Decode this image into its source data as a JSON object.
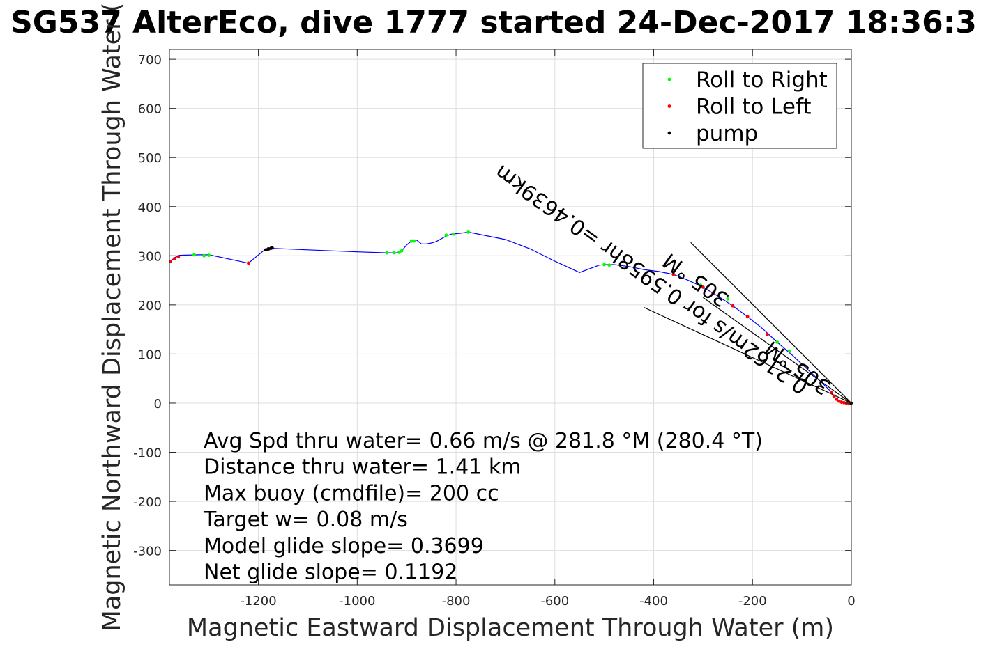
{
  "chart_data": {
    "type": "scatter",
    "title": "SG537 AlterEco, dive 1777 started 24-Dec-2017 18:36:3",
    "xlabel": "Magnetic Eastward Displacement Through Water (m)",
    "ylabel": "Magnetic Northward Displacement Through Water (",
    "xlim": [
      -1380,
      0
    ],
    "ylim": [
      -370,
      720
    ],
    "xticks": [
      -1200,
      -1000,
      -800,
      -600,
      -400,
      -200,
      0
    ],
    "yticks": [
      700,
      600,
      500,
      400,
      300,
      200,
      100,
      0,
      -100,
      -200,
      -300
    ],
    "grid": true,
    "legend_position": "top-right",
    "track_color": "#0000ff",
    "track": {
      "x": [
        0,
        -5,
        -10,
        -15,
        -20,
        -25,
        -30,
        -35,
        -40,
        -60,
        -90,
        -120,
        -150,
        -180,
        -210,
        -240,
        -270,
        -300,
        -330,
        -360,
        -390,
        -420,
        -450,
        -480,
        -495,
        -510,
        -550,
        -600,
        -650,
        -700,
        -775,
        -790,
        -810,
        -820,
        -840,
        -850,
        -860,
        -870,
        -880,
        -890,
        -900,
        -910,
        -920,
        -930,
        -940,
        -1000,
        -1100,
        -1170,
        -1175,
        -1180,
        -1190,
        -1220,
        -1300,
        -1320,
        -1360,
        -1370,
        -1378
      ],
      "y": [
        0,
        0,
        0,
        1,
        2,
        4,
        8,
        14,
        22,
        42,
        70,
        98,
        124,
        152,
        176,
        198,
        218,
        236,
        250,
        262,
        268,
        272,
        278,
        282,
        282,
        281,
        266,
        289,
        314,
        333,
        348,
        346,
        344,
        340,
        329,
        326,
        324,
        324,
        332,
        330,
        322,
        310,
        306,
        306,
        306,
        308,
        312,
        315,
        315,
        313,
        310,
        285,
        302,
        302,
        301,
        296,
        288
      ]
    },
    "series": [
      {
        "name": "Roll to Right",
        "color": "#00ff00",
        "x": [
          -1330,
          -1310,
          -1300,
          -940,
          -925,
          -915,
          -910,
          -890,
          -885,
          -820,
          -805,
          -775,
          -500,
          -490,
          -305,
          -250,
          -150,
          -125
        ],
        "y": [
          302,
          300,
          301,
          306,
          306,
          307,
          310,
          330,
          330,
          342,
          344,
          348,
          282,
          281,
          240,
          212,
          124,
          106
        ]
      },
      {
        "name": "Roll to Left",
        "color": "#ff0000",
        "x": [
          -1378,
          -1370,
          -1362,
          -1220,
          -1180,
          -360,
          -300,
          -280,
          -240,
          -210,
          -170,
          -40,
          -35,
          -30,
          -25,
          -20,
          -15,
          -10,
          -5,
          -2
        ],
        "y": [
          288,
          294,
          298,
          285,
          313,
          262,
          236,
          224,
          198,
          176,
          140,
          22,
          14,
          8,
          4,
          2,
          1,
          0,
          0,
          0
        ]
      },
      {
        "name": "pump",
        "color": "#000000",
        "x": [
          -1185,
          -1180,
          -1175,
          -1172,
          -0.5
        ],
        "y": [
          312,
          314,
          315,
          316,
          0
        ]
      }
    ],
    "annotations": [
      "Avg Spd thru water=  0.66 m/s @ 281.8 °M (280.4 °T)",
      "Distance thru water=  1.41 km",
      "Max buoy (cmdfile)= 200 cc",
      "Target w= 0.08 m/s",
      "Model glide slope= 0.3699",
      "Net glide slope= 0.1192"
    ],
    "current_label_1": "0.2162m/s for 0.5958hr =0.4639km",
    "current_label_2": "305 °M",
    "current_label_3": "305 °M",
    "current_arrow": {
      "x": [
        0,
        -300
      ],
      "y": [
        0,
        215
      ]
    },
    "current_arrow_head_lines": [
      {
        "x": [
          0,
          -325
        ],
        "y": [
          0,
          327
        ]
      },
      {
        "x": [
          0,
          -420
        ],
        "y": [
          0,
          195
        ]
      }
    ]
  }
}
